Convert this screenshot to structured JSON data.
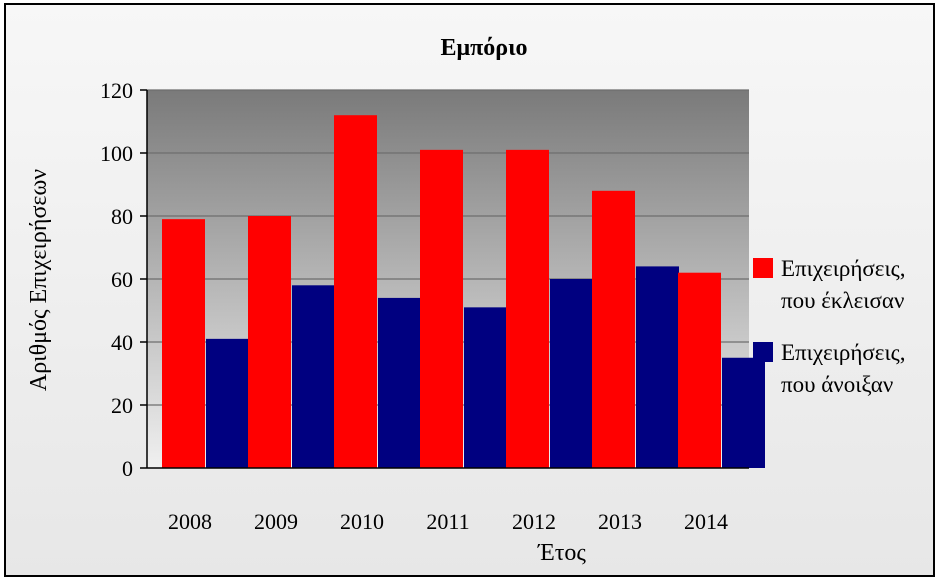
{
  "chart_data": {
    "type": "bar",
    "title": "Εμπόριο",
    "xlabel": "Έτος",
    "ylabel": "Αριθμός Επιχειρήσεων",
    "categories": [
      "2008",
      "2009",
      "2010",
      "2011",
      "2012",
      "2013",
      "2014"
    ],
    "ylim": [
      0,
      120
    ],
    "yticks": [
      "0",
      "20",
      "40",
      "60",
      "80",
      "100",
      "120"
    ],
    "grid": true,
    "legend_position": "right",
    "series": [
      {
        "name_lines": [
          "Επιχειρήσεις,",
          "που έκλεισαν"
        ],
        "color": "#ff0000",
        "values": [
          79,
          80,
          112,
          101,
          101,
          88,
          62
        ]
      },
      {
        "name_lines": [
          "Επιχειρήσεις,",
          "που άνοιξαν"
        ],
        "color": "#000080",
        "values": [
          41,
          58,
          54,
          51,
          60,
          64,
          35
        ]
      }
    ]
  }
}
